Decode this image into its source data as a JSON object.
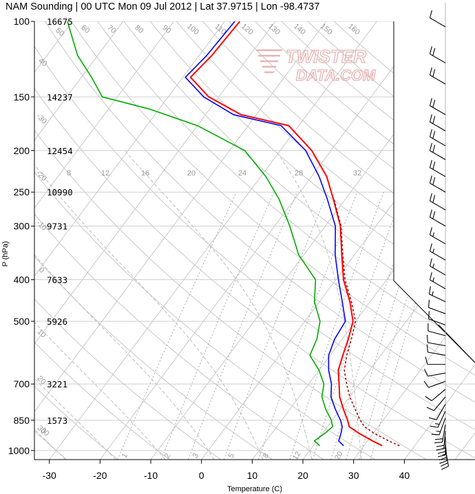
{
  "chart_data": {
    "type": "skew-t log-p sounding",
    "title": "NAM Sounding | 00 UTC Mon 09 Jul 2012 | Lat 37.9715 | Lon -98.4737",
    "xlabel": "Temperature (C)",
    "ylabel": "P (hPa)",
    "watermark": "TWISTER DATA.COM",
    "xlim": [
      -34,
      46
    ],
    "ylim": [
      1050,
      100
    ],
    "x_ticks": [
      "-30",
      "-20",
      "-10",
      "0",
      "10",
      "20",
      "30",
      "40"
    ],
    "y_ticks": [
      {
        "p": 100,
        "label": "100"
      },
      {
        "p": 150,
        "label": "150"
      },
      {
        "p": 200,
        "label": "200"
      },
      {
        "p": 250,
        "label": "250"
      },
      {
        "p": 300,
        "label": "300"
      },
      {
        "p": 400,
        "label": "400"
      },
      {
        "p": 500,
        "label": "500"
      },
      {
        "p": 700,
        "label": "700"
      },
      {
        "p": 850,
        "label": "850"
      },
      {
        "p": 1000,
        "label": "1000"
      }
    ],
    "heights_m": [
      {
        "p": 100,
        "label": "16675"
      },
      {
        "p": 150,
        "label": "14237"
      },
      {
        "p": 200,
        "label": "12454"
      },
      {
        "p": 250,
        "label": "10990"
      },
      {
        "p": 300,
        "label": "9731"
      },
      {
        "p": 400,
        "label": "7633"
      },
      {
        "p": 500,
        "label": "5926"
      },
      {
        "p": 700,
        "label": "3221"
      },
      {
        "p": 850,
        "label": "1573"
      }
    ],
    "mixing_ratio_labels": [
      "8",
      "12",
      "16",
      "20",
      "24",
      "28",
      "32"
    ],
    "mixing_ratio_lower_labels": [
      "1",
      "2",
      "3",
      "5",
      "8",
      "12",
      "20"
    ],
    "isotherm_labels": [
      "-30",
      "-20",
      "-10",
      "0",
      "10",
      "20",
      "30"
    ],
    "dry_adiabat_labels": [
      "40",
      "50",
      "60",
      "70",
      "80",
      "90",
      "100",
      "110",
      "120",
      "130",
      "140",
      "150",
      "160"
    ],
    "wet_bulb_labels": [
      "20",
      "10",
      "-10",
      "-20",
      "-30"
    ],
    "series": [
      {
        "name": "Temperature",
        "color": "#ff0000",
        "points": [
          [
            33.6,
            975
          ],
          [
            31.0,
            950
          ],
          [
            27.0,
            910
          ],
          [
            24.3,
            880
          ],
          [
            23.0,
            850
          ],
          [
            20.5,
            800
          ],
          [
            18.0,
            750
          ],
          [
            16.0,
            700
          ],
          [
            13.8,
            650
          ],
          [
            12.5,
            600
          ],
          [
            11.2,
            550
          ],
          [
            9.5,
            500
          ],
          [
            6.0,
            450
          ],
          [
            1.5,
            400
          ],
          [
            -2.5,
            350
          ],
          [
            -7.0,
            300
          ],
          [
            -12.3,
            260
          ],
          [
            -17.0,
            230
          ],
          [
            -23.8,
            200
          ],
          [
            -32.0,
            175
          ],
          [
            -43.0,
            165
          ],
          [
            -52.0,
            150
          ],
          [
            -58.5,
            135
          ],
          [
            -57.5,
            120
          ],
          [
            -57.0,
            100
          ]
        ]
      },
      {
        "name": "Dew Point",
        "color": "#00aa00",
        "points": [
          [
            21.3,
            975
          ],
          [
            19.5,
            950
          ],
          [
            20.5,
            910
          ],
          [
            21.0,
            880
          ],
          [
            19.8,
            850
          ],
          [
            17.0,
            800
          ],
          [
            14.5,
            750
          ],
          [
            13.0,
            700
          ],
          [
            10.0,
            650
          ],
          [
            6.0,
            600
          ],
          [
            5.0,
            550
          ],
          [
            3.0,
            500
          ],
          [
            -1.0,
            450
          ],
          [
            -4.0,
            400
          ],
          [
            -11.0,
            350
          ],
          [
            -17.0,
            300
          ],
          [
            -23.0,
            260
          ],
          [
            -29.0,
            230
          ],
          [
            -37.0,
            200
          ],
          [
            -50.0,
            175
          ],
          [
            -62.0,
            160
          ],
          [
            -73.0,
            150
          ],
          [
            -78.0,
            135
          ],
          [
            -84.0,
            120
          ],
          [
            -91.0,
            100
          ]
        ]
      },
      {
        "name": "Wet Bulb",
        "color": "#0000ff",
        "points": [
          [
            26.0,
            975
          ],
          [
            24.3,
            950
          ],
          [
            23.6,
            910
          ],
          [
            22.9,
            880
          ],
          [
            21.6,
            850
          ],
          [
            18.9,
            800
          ],
          [
            16.3,
            750
          ],
          [
            14.5,
            700
          ],
          [
            11.9,
            650
          ],
          [
            9.7,
            600
          ],
          [
            8.5,
            550
          ],
          [
            8.0,
            500
          ],
          [
            4.5,
            450
          ],
          [
            0.5,
            400
          ],
          [
            -3.8,
            350
          ],
          [
            -8.0,
            300
          ],
          [
            -13.5,
            260
          ],
          [
            -18.5,
            230
          ],
          [
            -25.0,
            200
          ],
          [
            -33.5,
            175
          ],
          [
            -44.5,
            165
          ],
          [
            -53.0,
            150
          ],
          [
            -59.5,
            135
          ],
          [
            -58.5,
            120
          ],
          [
            -58.0,
            100
          ]
        ]
      },
      {
        "name": "Virtual Temperature",
        "color": "#aa0000",
        "dash": "3,3",
        "points": [
          [
            37.0,
            975
          ],
          [
            34.2,
            950
          ],
          [
            30.0,
            910
          ],
          [
            27.3,
            880
          ],
          [
            25.5,
            850
          ],
          [
            22.8,
            800
          ],
          [
            20.0,
            750
          ],
          [
            17.5,
            700
          ],
          [
            15.0,
            650
          ],
          [
            13.3,
            600
          ],
          [
            11.8,
            550
          ],
          [
            10.0,
            500
          ],
          [
            6.3,
            450
          ],
          [
            1.8,
            400
          ],
          [
            -2.3,
            350
          ],
          [
            -6.9,
            300
          ],
          [
            -12.2,
            260
          ]
        ]
      }
    ],
    "wind_barbs": [
      {
        "p": 990,
        "dir": 170,
        "spd": 20
      },
      {
        "p": 960,
        "dir": 175,
        "spd": 25
      },
      {
        "p": 930,
        "dir": 180,
        "spd": 25
      },
      {
        "p": 900,
        "dir": 185,
        "spd": 20
      },
      {
        "p": 870,
        "dir": 190,
        "spd": 20
      },
      {
        "p": 840,
        "dir": 200,
        "spd": 15
      },
      {
        "p": 810,
        "dir": 205,
        "spd": 15
      },
      {
        "p": 780,
        "dir": 210,
        "spd": 10
      },
      {
        "p": 750,
        "dir": 220,
        "spd": 10
      },
      {
        "p": 720,
        "dir": 230,
        "spd": 10
      },
      {
        "p": 690,
        "dir": 250,
        "spd": 10
      },
      {
        "p": 660,
        "dir": 260,
        "spd": 10
      },
      {
        "p": 630,
        "dir": 270,
        "spd": 10
      },
      {
        "p": 600,
        "dir": 280,
        "spd": 10
      },
      {
        "p": 570,
        "dir": 280,
        "spd": 10
      },
      {
        "p": 540,
        "dir": 285,
        "spd": 10
      },
      {
        "p": 510,
        "dir": 290,
        "spd": 10
      },
      {
        "p": 480,
        "dir": 290,
        "spd": 10
      },
      {
        "p": 450,
        "dir": 295,
        "spd": 15
      },
      {
        "p": 420,
        "dir": 300,
        "spd": 15
      },
      {
        "p": 390,
        "dir": 300,
        "spd": 15
      },
      {
        "p": 360,
        "dir": 300,
        "spd": 15
      },
      {
        "p": 330,
        "dir": 300,
        "spd": 15
      },
      {
        "p": 300,
        "dir": 300,
        "spd": 20
      },
      {
        "p": 275,
        "dir": 300,
        "spd": 20
      },
      {
        "p": 250,
        "dir": 300,
        "spd": 20
      },
      {
        "p": 230,
        "dir": 300,
        "spd": 20
      },
      {
        "p": 210,
        "dir": 300,
        "spd": 20
      },
      {
        "p": 195,
        "dir": 300,
        "spd": 20
      },
      {
        "p": 180,
        "dir": 300,
        "spd": 20
      },
      {
        "p": 165,
        "dir": 300,
        "spd": 20
      },
      {
        "p": 140,
        "dir": 300,
        "spd": 20
      },
      {
        "p": 125,
        "dir": 300,
        "spd": 20
      },
      {
        "p": 103,
        "dir": 300,
        "spd": 10
      }
    ]
  }
}
